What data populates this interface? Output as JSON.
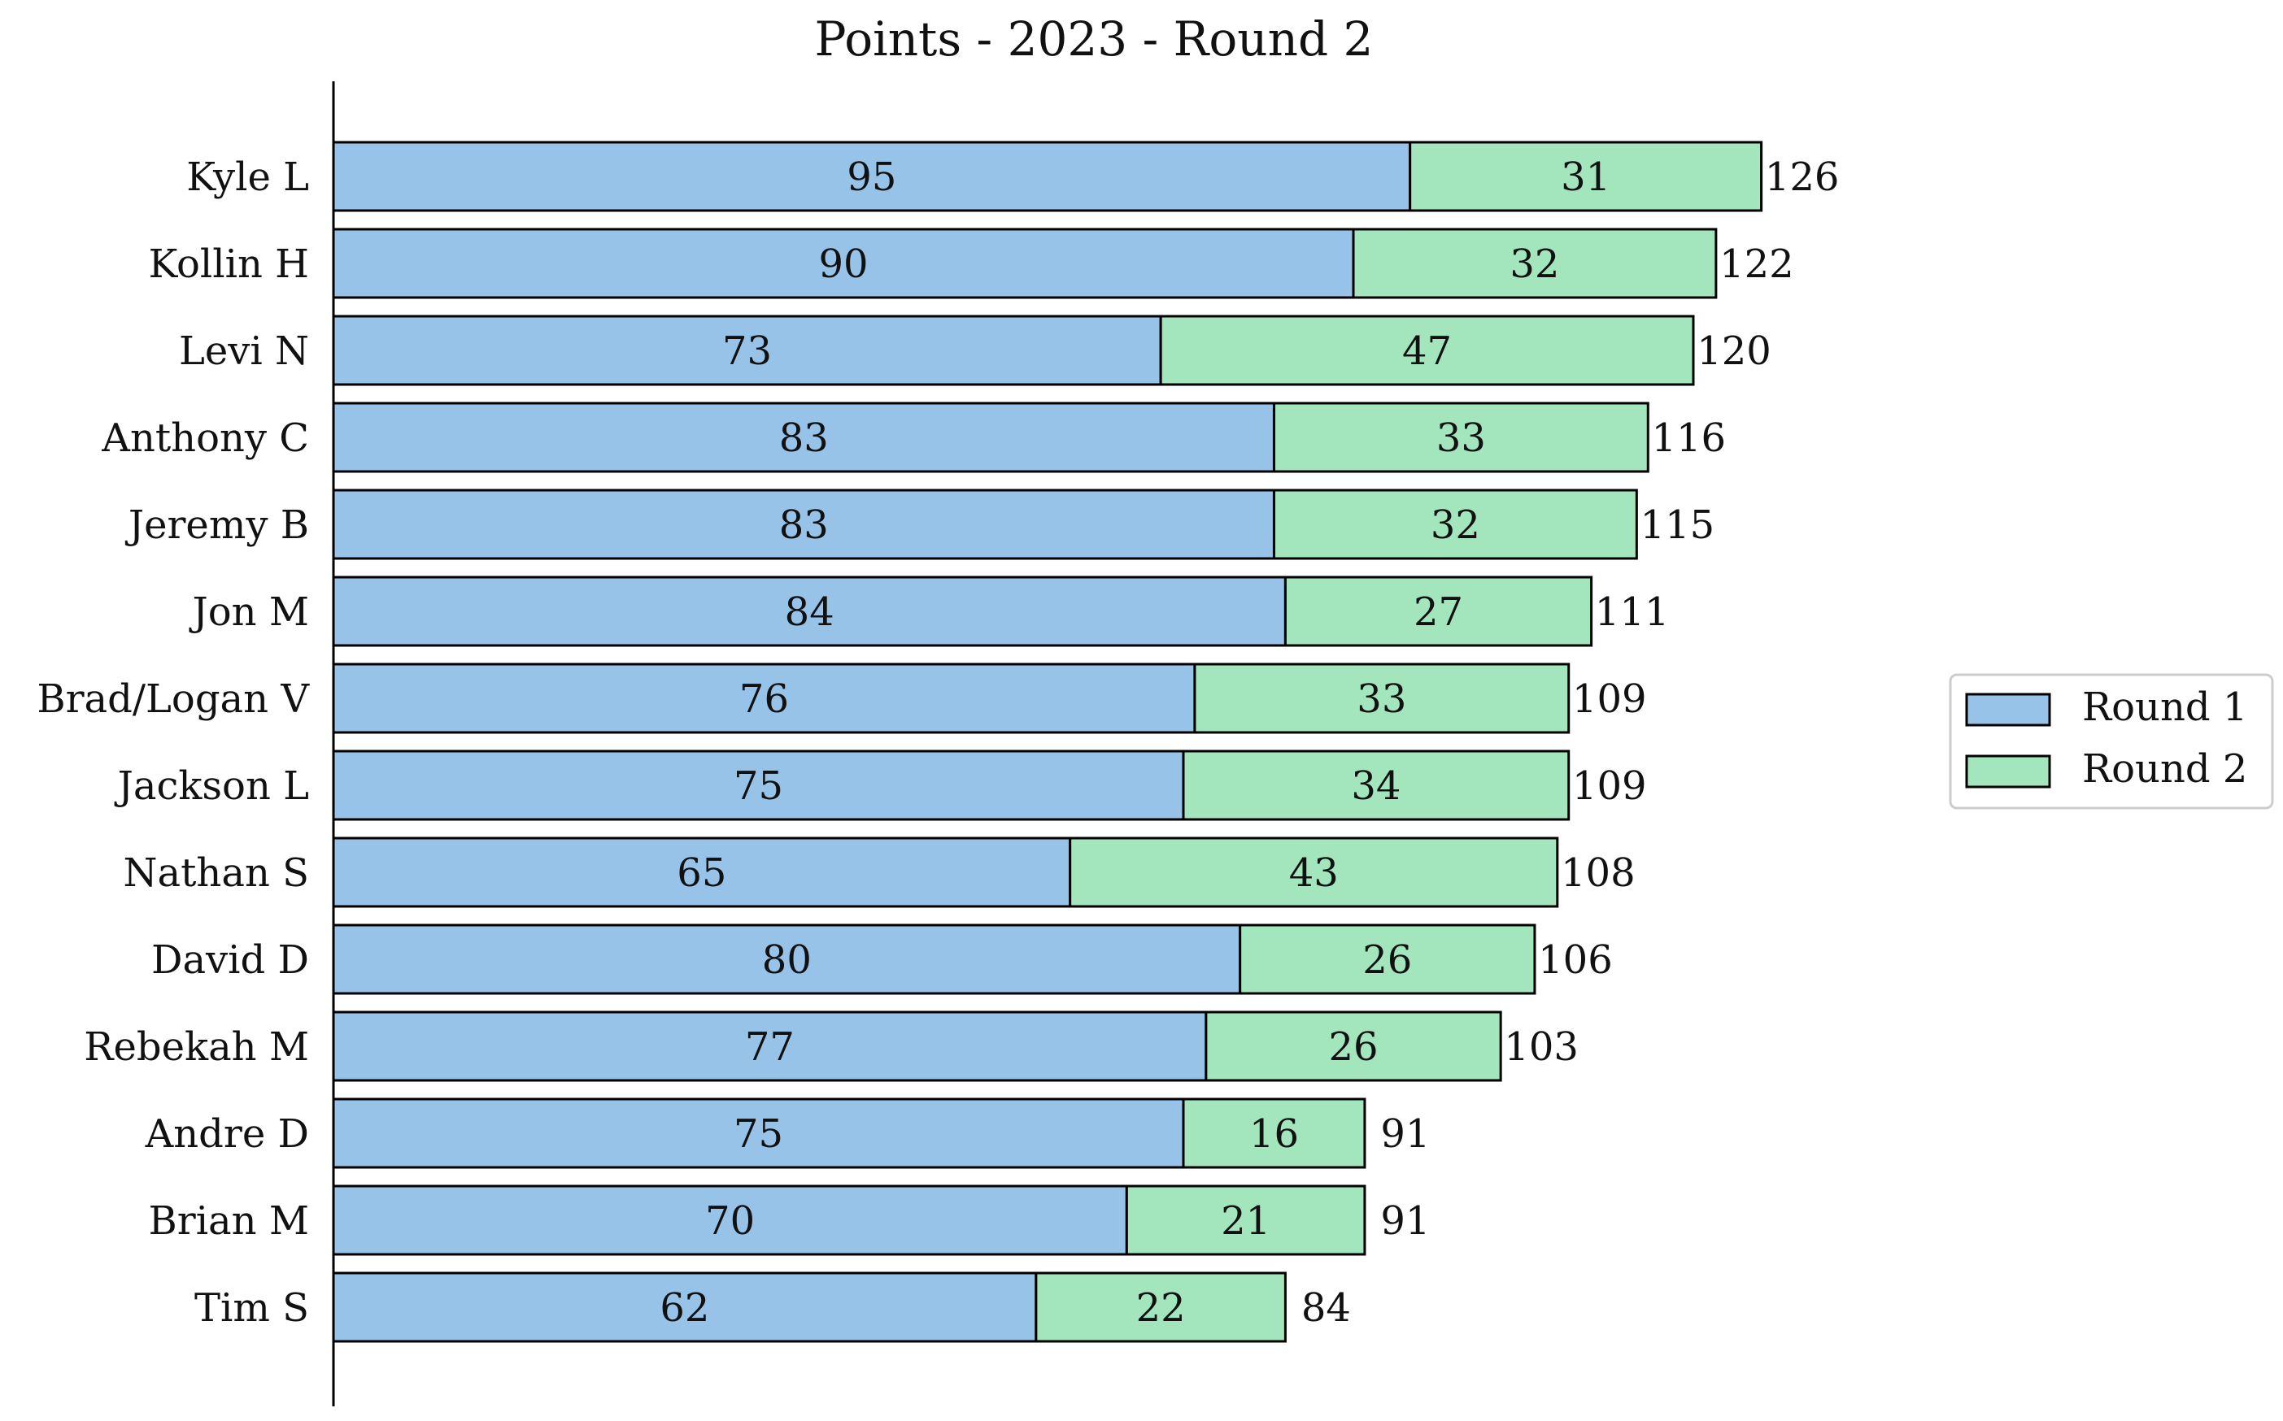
{
  "chart_data": {
    "type": "bar",
    "orientation": "horizontal",
    "stacked": true,
    "title": "Points - 2023 - Round 2",
    "categories": [
      "Kyle L",
      "Kollin H",
      "Levi N",
      "Anthony C",
      "Jeremy B",
      "Jon M",
      "Brad/Logan V",
      "Jackson L",
      "Nathan S",
      "David D",
      "Rebekah M",
      "Andre D",
      "Brian M",
      "Tim S"
    ],
    "series": [
      {
        "name": "Round 1",
        "color": "#97c3e9",
        "values": [
          95,
          90,
          73,
          83,
          83,
          84,
          76,
          75,
          65,
          80,
          77,
          75,
          70,
          62
        ]
      },
      {
        "name": "Round 2",
        "color": "#a3e6bd",
        "values": [
          31,
          32,
          47,
          33,
          32,
          27,
          33,
          34,
          43,
          26,
          26,
          16,
          21,
          22
        ]
      }
    ],
    "totals": [
      126,
      122,
      120,
      116,
      115,
      111,
      109,
      109,
      108,
      106,
      103,
      91,
      91,
      84
    ],
    "xlim": [
      0,
      150
    ],
    "grid": false,
    "legend_position": "center-right",
    "xaxis_visible": false
  }
}
